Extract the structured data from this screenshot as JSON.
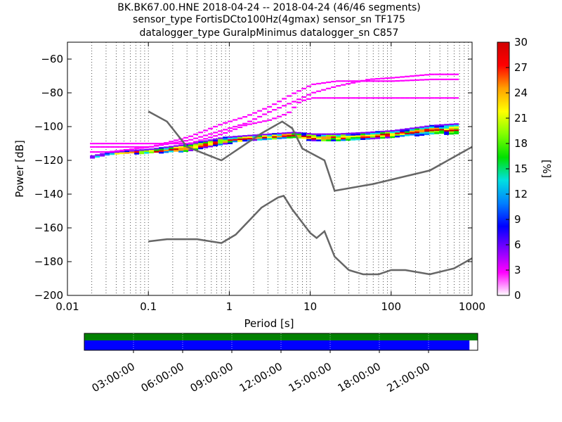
{
  "title_lines": [
    "BK.BK67.00.HNE   2018-04-24 -- 2018-04-24  (46/46 segments)",
    "sensor_type FortisDCto100Hz(4gmax) sensor_sn TF175",
    "datalogger_type GuralpMinimus datalogger_sn C857"
  ],
  "chart_data": {
    "type": "heatmap",
    "xlabel": "Period [s]",
    "ylabel": "Power [dB]",
    "x_scale": "log",
    "xlim": [
      0.01,
      1000
    ],
    "ylim": [
      -200,
      -50
    ],
    "x_ticks": [
      0.01,
      0.1,
      1,
      10,
      100,
      1000
    ],
    "x_tick_labels": [
      "0.01",
      "0.1",
      "1",
      "10",
      "100",
      "1000"
    ],
    "y_ticks": [
      -200,
      -180,
      -160,
      -140,
      -120,
      -100,
      -80,
      -60
    ],
    "y_tick_labels": [
      "−200",
      "−180",
      "−160",
      "−140",
      "−120",
      "−100",
      "−80",
      "−60"
    ],
    "grid": "dotted vertical",
    "noise_models": [
      {
        "name": "high_noise_model",
        "points": [
          [
            0.1,
            -91
          ],
          [
            0.17,
            -97
          ],
          [
            0.3,
            -112
          ],
          [
            0.8,
            -120
          ],
          [
            2.5,
            -104
          ],
          [
            4.5,
            -97
          ],
          [
            6,
            -101
          ],
          [
            8,
            -113
          ],
          [
            15,
            -120
          ],
          [
            20,
            -138
          ],
          [
            60,
            -134
          ],
          [
            300,
            -126
          ],
          [
            1000,
            -112
          ]
        ]
      },
      {
        "name": "low_noise_model",
        "points": [
          [
            0.1,
            -168
          ],
          [
            0.17,
            -166.7
          ],
          [
            0.4,
            -166.7
          ],
          [
            0.8,
            -169
          ],
          [
            1.2,
            -164
          ],
          [
            2.5,
            -148
          ],
          [
            4,
            -142
          ],
          [
            4.7,
            -141
          ],
          [
            6,
            -149
          ],
          [
            10,
            -163
          ],
          [
            12,
            -166
          ],
          [
            15,
            -162
          ],
          [
            20,
            -177
          ],
          [
            30,
            -185
          ],
          [
            45,
            -187.5
          ],
          [
            70,
            -187.5
          ],
          [
            100,
            -185
          ],
          [
            150,
            -185
          ],
          [
            300,
            -187.5
          ],
          [
            600,
            -184
          ],
          [
            1000,
            -178
          ]
        ]
      }
    ],
    "psd_traces": [
      {
        "name": "main_band_lower",
        "points": [
          [
            0.019,
            -118
          ],
          [
            0.03,
            -116
          ],
          [
            0.1,
            -115.5
          ],
          [
            0.3,
            -114
          ],
          [
            0.8,
            -110
          ],
          [
            1.5,
            -108
          ],
          [
            3,
            -107
          ],
          [
            6,
            -106
          ],
          [
            10,
            -108
          ],
          [
            20,
            -108
          ],
          [
            50,
            -107
          ],
          [
            100,
            -106
          ],
          [
            300,
            -104
          ],
          [
            600,
            -104
          ]
        ]
      },
      {
        "name": "main_band_upper",
        "points": [
          [
            0.019,
            -117
          ],
          [
            0.03,
            -115
          ],
          [
            0.1,
            -113
          ],
          [
            0.3,
            -110
          ],
          [
            0.8,
            -106
          ],
          [
            1.5,
            -105
          ],
          [
            3,
            -104
          ],
          [
            6,
            -103
          ],
          [
            10,
            -104
          ],
          [
            20,
            -104
          ],
          [
            50,
            -103
          ],
          [
            100,
            -102
          ],
          [
            300,
            -99
          ],
          [
            600,
            -98
          ]
        ]
      },
      {
        "name": "outlier_1",
        "points": [
          [
            0.03,
            -115
          ],
          [
            0.1,
            -112
          ],
          [
            0.3,
            -108
          ],
          [
            0.8,
            -102
          ],
          [
            1.5,
            -98
          ],
          [
            3,
            -91
          ],
          [
            6,
            -85
          ],
          [
            10,
            -80
          ],
          [
            20,
            -76
          ],
          [
            50,
            -72
          ],
          [
            100,
            -71
          ],
          [
            300,
            -69
          ],
          [
            600,
            -69
          ]
        ]
      },
      {
        "name": "outlier_2",
        "points": [
          [
            0.1,
            -112
          ],
          [
            0.3,
            -106
          ],
          [
            0.8,
            -98
          ],
          [
            1.5,
            -94
          ],
          [
            3,
            -88
          ],
          [
            6,
            -80
          ],
          [
            10,
            -75
          ],
          [
            20,
            -73
          ],
          [
            100,
            -73
          ],
          [
            300,
            -72
          ],
          [
            600,
            -72
          ]
        ]
      },
      {
        "name": "outlier_3",
        "points": [
          [
            0.3,
            -110
          ],
          [
            0.8,
            -104
          ],
          [
            1.5,
            -99
          ],
          [
            3,
            -96
          ],
          [
            5,
            -92
          ],
          [
            7,
            -85
          ],
          [
            10,
            -83
          ],
          [
            100,
            -83
          ],
          [
            600,
            -83
          ]
        ]
      }
    ],
    "colorbar": {
      "label": "[%]",
      "min": 0,
      "max": 30,
      "ticks": [
        0,
        3,
        6,
        9,
        12,
        15,
        18,
        21,
        24,
        27,
        30
      ],
      "colors": [
        "#ffffff",
        "#ff00ff",
        "#8000ff",
        "#0000ff",
        "#0080ff",
        "#00e0e0",
        "#00e000",
        "#80ff00",
        "#ffff00",
        "#ffa000",
        "#ff0000",
        "#d00000"
      ]
    },
    "noise_model_color": "#666666"
  },
  "timeline": {
    "tick_labels": [
      "03:00:00",
      "06:00:00",
      "09:00:00",
      "12:00:00",
      "15:00:00",
      "18:00:00",
      "21:00:00"
    ],
    "ticks_hours": [
      3,
      6,
      9,
      12,
      15,
      18,
      21
    ],
    "range_hours": [
      0,
      24
    ],
    "coverage_fraction": 0.979,
    "top_bar_color": "#008000",
    "bottom_bar_color": "#0000ff"
  }
}
